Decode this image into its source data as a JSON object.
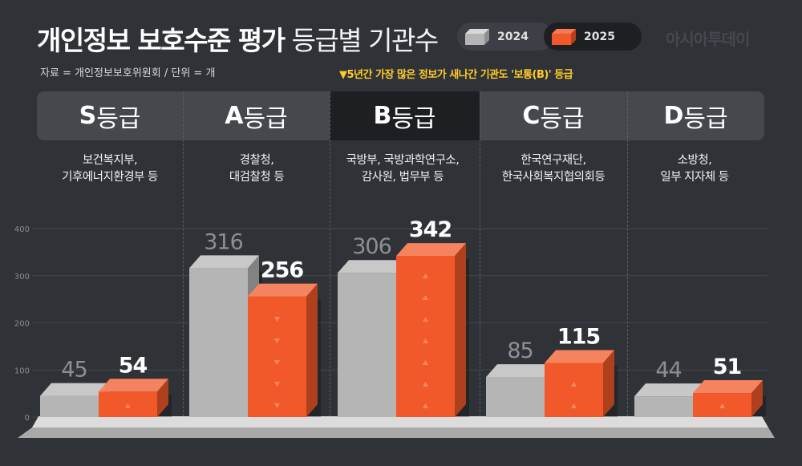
{
  "title": {
    "bold": "개인정보 보호수준 평가",
    "light": "등급별 기관수"
  },
  "legend": [
    {
      "label": "2024",
      "color": "#b5b5b5"
    },
    {
      "label": "2025",
      "color": "#f2592a"
    }
  ],
  "watermark": "아시아투데이",
  "source": "자료 = 개인정보보호위원회 / 단위 = 개",
  "note": "▼5년간 가장 많은 정보가 새나간 기관도 '보통(B)' 등급",
  "grades": [
    {
      "letter": "S",
      "suffix": "등급",
      "orgs": "보건복지부,\n기후에너지환경부 등"
    },
    {
      "letter": "A",
      "suffix": "등급",
      "orgs": "경찰청,\n대검찰청 등"
    },
    {
      "letter": "B",
      "suffix": "등급",
      "orgs": "국방부, 국방과학연구소,\n감사원, 법무부 등"
    },
    {
      "letter": "C",
      "suffix": "등급",
      "orgs": "한국연구재단,\n한국사회복지협의회등"
    },
    {
      "letter": "D",
      "suffix": "등급",
      "orgs": "소방청,\n일부 지자체 등"
    }
  ],
  "chart_data": {
    "type": "bar",
    "categories": [
      "S등급",
      "A등급",
      "B등급",
      "C등급",
      "D등급"
    ],
    "series": [
      {
        "name": "2024",
        "values": [
          45,
          316,
          306,
          85,
          44
        ],
        "color": "#b5b5b5"
      },
      {
        "name": "2025",
        "values": [
          54,
          256,
          342,
          115,
          51
        ],
        "color": "#f2592a"
      }
    ],
    "yticks": [
      0,
      100,
      200,
      300,
      400
    ],
    "ylim": [
      0,
      400
    ],
    "grid": true,
    "legend_position": "top-right"
  }
}
